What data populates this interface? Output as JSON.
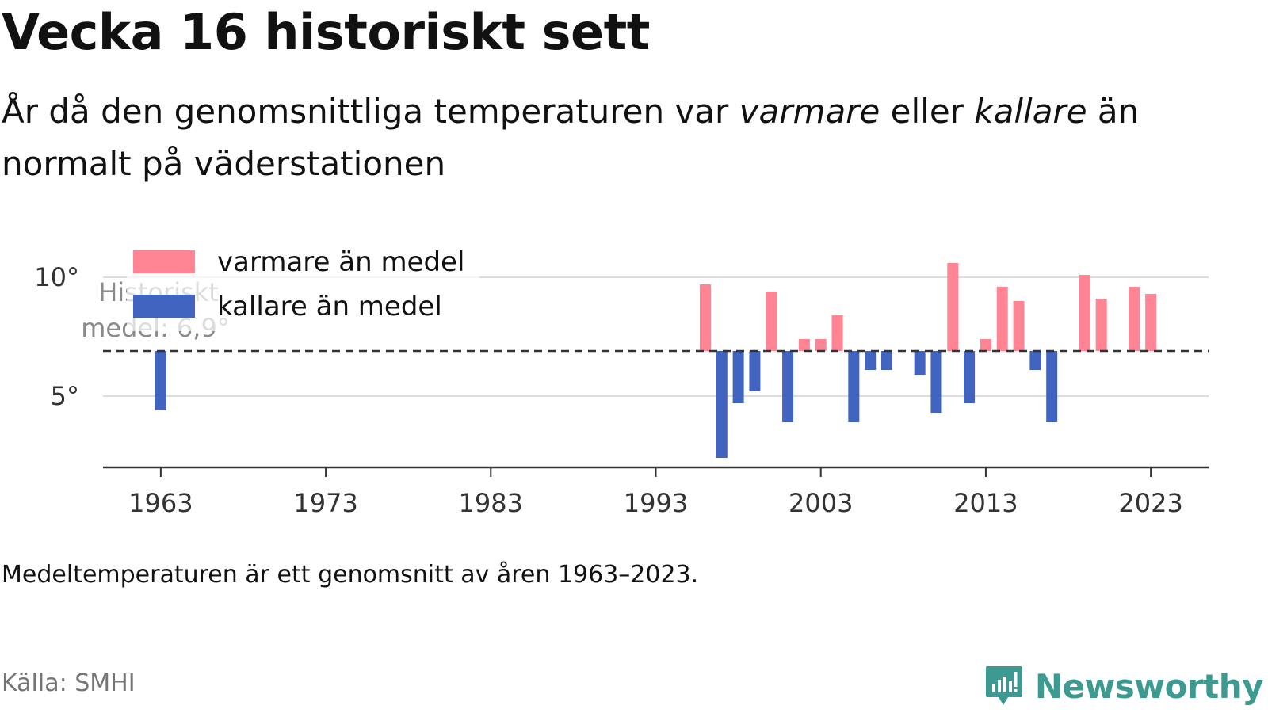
{
  "title": "Vecka 16 historiskt sett",
  "subtitle": {
    "part1": "År då den genomsnittliga temperaturen var ",
    "warm_word": "varmare",
    "part2": " eller ",
    "cold_word": "kallare",
    "part3": " än normalt på väderstationen"
  },
  "footnote": "Medeltemperaturen är ett genomsnitt av åren 1963–2023.",
  "source": "Källa: SMHI",
  "brand": "Newsworthy",
  "colors": {
    "warm": "#ff8595",
    "cold": "#4064bf",
    "brand": "#3d9a91",
    "grid": "#dddddd",
    "axis": "#333333",
    "mean_line": "#333333"
  },
  "chart_data": {
    "type": "bar",
    "baseline": 6.9,
    "baseline_label_line1": "Historiskt",
    "baseline_label_line2": "medel: 6,9°",
    "x": [
      1963,
      1996,
      1997,
      1998,
      1999,
      2000,
      2001,
      2002,
      2003,
      2004,
      2005,
      2006,
      2007,
      2009,
      2010,
      2011,
      2012,
      2013,
      2014,
      2015,
      2016,
      2017,
      2019,
      2020,
      2022,
      2023
    ],
    "values": [
      4.4,
      9.7,
      2.4,
      4.7,
      5.2,
      9.4,
      3.9,
      7.4,
      7.4,
      8.4,
      3.9,
      6.1,
      6.1,
      5.9,
      4.3,
      10.6,
      4.7,
      7.4,
      9.6,
      9.0,
      6.1,
      3.9,
      10.1,
      9.1,
      9.6,
      9.3
    ],
    "xticks": [
      1963,
      1973,
      1983,
      1993,
      2003,
      2013,
      2023
    ],
    "xtick_labels": [
      "1963",
      "1973",
      "1983",
      "1993",
      "2003",
      "2013",
      "2023"
    ],
    "yticks": [
      5,
      10
    ],
    "ytick_labels": [
      "5°",
      "10°"
    ],
    "xlim": [
      1959.5,
      2026.5
    ],
    "ylim": [
      2.0,
      11.0
    ],
    "grid": true,
    "legend_position": "top-left",
    "legend": [
      {
        "label": "varmare än medel",
        "color_key": "warm"
      },
      {
        "label": "kallare än medel",
        "color_key": "cold"
      }
    ]
  }
}
